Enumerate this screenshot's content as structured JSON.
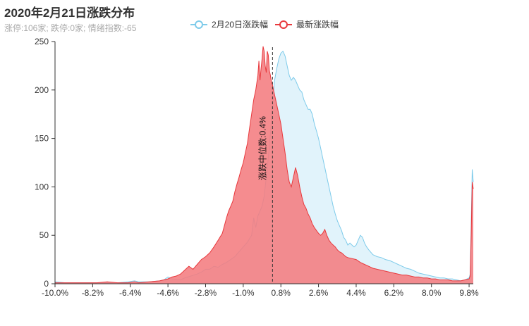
{
  "title": "2020年2月21日涨跌分布",
  "subtitle": "涨停:106家; 跌停:0家; 情绪指数:-65",
  "legend": {
    "items": [
      {
        "name": "2月20日涨跌幅",
        "color": "#7ecbea"
      },
      {
        "name": "最新涨跌幅",
        "color": "#e8393d"
      }
    ]
  },
  "chart_data": {
    "type": "area",
    "x_ticks": [
      "-10.0%",
      "-8.2%",
      "-6.4%",
      "-4.6%",
      "-2.8%",
      "-1.0%",
      "0.8%",
      "2.6%",
      "4.4%",
      "6.2%",
      "8.0%",
      "9.8%"
    ],
    "y_ticks": [
      "0",
      "50",
      "100",
      "150",
      "200",
      "250"
    ],
    "xlim": [
      -10.0,
      10.0
    ],
    "ylim": [
      0,
      250
    ],
    "median_line": {
      "x": 0.4,
      "label": "涨跌中位数:0.4%"
    },
    "series": [
      {
        "name": "2月20日涨跌幅",
        "color": "#7ecbea",
        "fill": "#dff2fb",
        "points": [
          [
            -10.0,
            2
          ],
          [
            -9.5,
            1
          ],
          [
            -9.0,
            1
          ],
          [
            -8.5,
            1
          ],
          [
            -8.0,
            1
          ],
          [
            -7.5,
            1
          ],
          [
            -7.0,
            1
          ],
          [
            -6.5,
            2
          ],
          [
            -6.2,
            3
          ],
          [
            -6.0,
            2
          ],
          [
            -5.5,
            2
          ],
          [
            -5.0,
            3
          ],
          [
            -4.8,
            4
          ],
          [
            -4.6,
            7
          ],
          [
            -4.4,
            5
          ],
          [
            -4.0,
            4
          ],
          [
            -3.8,
            6
          ],
          [
            -3.5,
            8
          ],
          [
            -3.2,
            10
          ],
          [
            -3.0,
            12
          ],
          [
            -2.8,
            15
          ],
          [
            -2.6,
            15
          ],
          [
            -2.4,
            18
          ],
          [
            -2.2,
            17
          ],
          [
            -2.0,
            20
          ],
          [
            -1.8,
            22
          ],
          [
            -1.6,
            25
          ],
          [
            -1.4,
            28
          ],
          [
            -1.2,
            33
          ],
          [
            -1.0,
            38
          ],
          [
            -0.8,
            43
          ],
          [
            -0.6,
            50
          ],
          [
            -0.5,
            68
          ],
          [
            -0.4,
            58
          ],
          [
            -0.3,
            70
          ],
          [
            -0.2,
            75
          ],
          [
            -0.1,
            80
          ],
          [
            0.0,
            90
          ],
          [
            0.1,
            110
          ],
          [
            0.2,
            130
          ],
          [
            0.3,
            155
          ],
          [
            0.4,
            185
          ],
          [
            0.5,
            210
          ],
          [
            0.6,
            222
          ],
          [
            0.7,
            232
          ],
          [
            0.8,
            238
          ],
          [
            0.9,
            240
          ],
          [
            1.0,
            235
          ],
          [
            1.1,
            225
          ],
          [
            1.2,
            215
          ],
          [
            1.3,
            210
          ],
          [
            1.4,
            213
          ],
          [
            1.5,
            210
          ],
          [
            1.6,
            205
          ],
          [
            1.7,
            200
          ],
          [
            1.8,
            198
          ],
          [
            1.9,
            190
          ],
          [
            2.0,
            185
          ],
          [
            2.1,
            180
          ],
          [
            2.2,
            180
          ],
          [
            2.3,
            175
          ],
          [
            2.4,
            165
          ],
          [
            2.5,
            158
          ],
          [
            2.6,
            150
          ],
          [
            2.7,
            140
          ],
          [
            2.8,
            130
          ],
          [
            2.9,
            120
          ],
          [
            3.0,
            110
          ],
          [
            3.1,
            100
          ],
          [
            3.2,
            90
          ],
          [
            3.3,
            80
          ],
          [
            3.4,
            72
          ],
          [
            3.5,
            65
          ],
          [
            3.6,
            60
          ],
          [
            3.7,
            55
          ],
          [
            3.8,
            48
          ],
          [
            3.9,
            45
          ],
          [
            4.0,
            40
          ],
          [
            4.1,
            42
          ],
          [
            4.2,
            40
          ],
          [
            4.3,
            38
          ],
          [
            4.4,
            40
          ],
          [
            4.5,
            45
          ],
          [
            4.6,
            50
          ],
          [
            4.7,
            48
          ],
          [
            4.8,
            42
          ],
          [
            4.9,
            38
          ],
          [
            5.0,
            35
          ],
          [
            5.2,
            30
          ],
          [
            5.4,
            28
          ],
          [
            5.6,
            27
          ],
          [
            5.8,
            25
          ],
          [
            6.0,
            24
          ],
          [
            6.2,
            22
          ],
          [
            6.4,
            20
          ],
          [
            6.6,
            18
          ],
          [
            6.8,
            16
          ],
          [
            7.0,
            15
          ],
          [
            7.2,
            13
          ],
          [
            7.4,
            11
          ],
          [
            7.6,
            10
          ],
          [
            7.8,
            9
          ],
          [
            8.0,
            8
          ],
          [
            8.2,
            7
          ],
          [
            8.4,
            6
          ],
          [
            8.6,
            6
          ],
          [
            8.8,
            5
          ],
          [
            9.0,
            5
          ],
          [
            9.2,
            4
          ],
          [
            9.4,
            3
          ],
          [
            9.6,
            4
          ],
          [
            9.8,
            6
          ],
          [
            9.85,
            10
          ],
          [
            9.9,
            60
          ],
          [
            9.95,
            118
          ],
          [
            10.0,
            105
          ]
        ]
      },
      {
        "name": "最新涨跌幅",
        "color": "#e8393d",
        "fill": "#f47c7f",
        "points": [
          [
            -10.0,
            1
          ],
          [
            -9.5,
            1
          ],
          [
            -9.0,
            1
          ],
          [
            -8.5,
            1
          ],
          [
            -8.0,
            1
          ],
          [
            -7.5,
            2
          ],
          [
            -7.0,
            1
          ],
          [
            -6.5,
            1
          ],
          [
            -6.2,
            2
          ],
          [
            -6.0,
            1
          ],
          [
            -5.5,
            2
          ],
          [
            -5.0,
            3
          ],
          [
            -4.8,
            4
          ],
          [
            -4.6,
            5
          ],
          [
            -4.4,
            7
          ],
          [
            -4.2,
            8
          ],
          [
            -4.0,
            10
          ],
          [
            -3.8,
            14
          ],
          [
            -3.6,
            18
          ],
          [
            -3.4,
            15
          ],
          [
            -3.2,
            20
          ],
          [
            -3.0,
            25
          ],
          [
            -2.8,
            28
          ],
          [
            -2.6,
            32
          ],
          [
            -2.4,
            38
          ],
          [
            -2.2,
            45
          ],
          [
            -2.0,
            52
          ],
          [
            -1.9,
            60
          ],
          [
            -1.8,
            68
          ],
          [
            -1.7,
            75
          ],
          [
            -1.6,
            80
          ],
          [
            -1.5,
            85
          ],
          [
            -1.4,
            95
          ],
          [
            -1.3,
            103
          ],
          [
            -1.2,
            110
          ],
          [
            -1.1,
            118
          ],
          [
            -1.0,
            125
          ],
          [
            -0.9,
            135
          ],
          [
            -0.8,
            145
          ],
          [
            -0.7,
            160
          ],
          [
            -0.6,
            175
          ],
          [
            -0.5,
            190
          ],
          [
            -0.4,
            200
          ],
          [
            -0.3,
            215
          ],
          [
            -0.25,
            230
          ],
          [
            -0.2,
            210
          ],
          [
            -0.15,
            222
          ],
          [
            -0.1,
            232
          ],
          [
            -0.05,
            245
          ],
          [
            0.0,
            240
          ],
          [
            0.05,
            225
          ],
          [
            0.1,
            218
          ],
          [
            0.15,
            240
          ],
          [
            0.2,
            236
          ],
          [
            0.25,
            220
          ],
          [
            0.3,
            215
          ],
          [
            0.35,
            208
          ],
          [
            0.4,
            205
          ],
          [
            0.45,
            200
          ],
          [
            0.5,
            195
          ],
          [
            0.6,
            185
          ],
          [
            0.7,
            175
          ],
          [
            0.8,
            165
          ],
          [
            0.9,
            150
          ],
          [
            1.0,
            135
          ],
          [
            1.1,
            118
          ],
          [
            1.2,
            105
          ],
          [
            1.3,
            100
          ],
          [
            1.4,
            110
          ],
          [
            1.5,
            120
          ],
          [
            1.6,
            112
          ],
          [
            1.7,
            100
          ],
          [
            1.8,
            90
          ],
          [
            1.9,
            82
          ],
          [
            2.0,
            78
          ],
          [
            2.1,
            72
          ],
          [
            2.2,
            68
          ],
          [
            2.3,
            62
          ],
          [
            2.4,
            58
          ],
          [
            2.5,
            55
          ],
          [
            2.6,
            52
          ],
          [
            2.7,
            50
          ],
          [
            2.8,
            52
          ],
          [
            2.9,
            56
          ],
          [
            3.0,
            50
          ],
          [
            3.1,
            45
          ],
          [
            3.2,
            42
          ],
          [
            3.3,
            40
          ],
          [
            3.4,
            38
          ],
          [
            3.5,
            35
          ],
          [
            3.6,
            33
          ],
          [
            3.7,
            32
          ],
          [
            3.8,
            30
          ],
          [
            3.9,
            28
          ],
          [
            4.0,
            27
          ],
          [
            4.2,
            26
          ],
          [
            4.4,
            25
          ],
          [
            4.6,
            22
          ],
          [
            4.8,
            20
          ],
          [
            5.0,
            18
          ],
          [
            5.2,
            16
          ],
          [
            5.4,
            15
          ],
          [
            5.6,
            14
          ],
          [
            5.8,
            13
          ],
          [
            6.0,
            12
          ],
          [
            6.2,
            11
          ],
          [
            6.4,
            10
          ],
          [
            6.6,
            9
          ],
          [
            6.8,
            9
          ],
          [
            7.0,
            8
          ],
          [
            7.2,
            7
          ],
          [
            7.4,
            7
          ],
          [
            7.6,
            6
          ],
          [
            7.8,
            6
          ],
          [
            8.0,
            5
          ],
          [
            8.2,
            5
          ],
          [
            8.4,
            4
          ],
          [
            8.6,
            4
          ],
          [
            8.8,
            4
          ],
          [
            9.0,
            3
          ],
          [
            9.2,
            3
          ],
          [
            9.4,
            3
          ],
          [
            9.6,
            4
          ],
          [
            9.8,
            5
          ],
          [
            9.85,
            8
          ],
          [
            9.9,
            50
          ],
          [
            9.95,
            105
          ],
          [
            10.0,
            98
          ]
        ]
      }
    ]
  }
}
